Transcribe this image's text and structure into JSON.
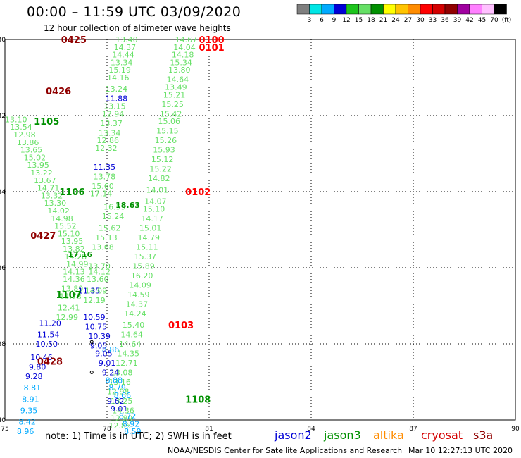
{
  "header": {
    "title": "00:00 – 11:59 UTC 03/09/2020",
    "subtitle": "12 hour collection of altimeter wave heights"
  },
  "colorbar": {
    "labels": [
      "3",
      "6",
      "9",
      "12",
      "15",
      "18",
      "21",
      "24",
      "27",
      "30",
      "33",
      "36",
      "39",
      "42",
      "45",
      "70",
      "(ft)"
    ],
    "colors": [
      "#7f7f7f",
      "#00e6e6",
      "#00aaff",
      "#0000d6",
      "#1cc41c",
      "#66e066",
      "#009000",
      "#ffff00",
      "#ffc400",
      "#ff8c00",
      "#ff0000",
      "#d40000",
      "#900000",
      "#a000a0",
      "#ff80ff",
      "#ffc0ff",
      "#000000"
    ]
  },
  "footer": {
    "note": "note: 1) Time is in UTC; 2) SWH is in feet",
    "credit": "NOAA/NESDIS Center for Satellite Applications and Research",
    "timestamp": "Mar 10 12:27:13 UTC 2020",
    "satellites": [
      {
        "name": "jason2",
        "color": "#0000d6"
      },
      {
        "name": "jason3",
        "color": "#009000"
      },
      {
        "name": "altika",
        "color": "#ff8c00"
      },
      {
        "name": "cryosat",
        "color": "#d40000"
      },
      {
        "name": "s3a",
        "color": "#900000"
      }
    ]
  },
  "chart_data": {
    "type": "scatter",
    "title": "00:00 – 11:59 UTC 03/09/2020",
    "xlim": [
      75,
      90
    ],
    "ylim": [
      -40,
      -30
    ],
    "xticks": [
      75,
      78,
      81,
      84,
      87,
      90
    ],
    "yticks": [
      -30,
      -32,
      -34,
      -36,
      -38,
      -40
    ],
    "xtick_labels": [
      "75",
      "78",
      "81",
      "84",
      "87",
      "90"
    ],
    "ytick_labels": [
      "-30",
      "-32",
      "-34",
      "-36",
      "-38",
      "-40"
    ],
    "grid": true,
    "pass_labels": [
      {
        "text": "0425",
        "lon": 76.65,
        "lat": -30.0,
        "color": "#900000"
      },
      {
        "text": "0100",
        "lon": 80.7,
        "lat": -30.0,
        "color": "#ff0000"
      },
      {
        "text": "0101",
        "lon": 80.7,
        "lat": -30.2,
        "color": "#ff0000"
      },
      {
        "text": "0426",
        "lon": 76.2,
        "lat": -31.35,
        "color": "#900000"
      },
      {
        "text": "1105",
        "lon": 75.85,
        "lat": -32.15,
        "color": "#009000"
      },
      {
        "text": "0102",
        "lon": 80.3,
        "lat": -34.0,
        "color": "#ff0000"
      },
      {
        "text": "1106",
        "lon": 76.6,
        "lat": -34.0,
        "color": "#009000"
      },
      {
        "text": "0427",
        "lon": 75.75,
        "lat": -35.15,
        "color": "#900000"
      },
      {
        "text": "1107",
        "lon": 76.5,
        "lat": -36.7,
        "color": "#009000"
      },
      {
        "text": "0103",
        "lon": 79.8,
        "lat": -37.5,
        "color": "#ff0000"
      },
      {
        "text": "0428",
        "lon": 75.95,
        "lat": -38.45,
        "color": "#900000"
      },
      {
        "text": "1108",
        "lon": 80.3,
        "lat": -39.45,
        "color": "#009000"
      }
    ],
    "series": [
      {
        "name": "jason3",
        "color": "#66e066",
        "points": [
          {
            "lon": 78.25,
            "lat": -30.0,
            "v": "13.40"
          },
          {
            "lon": 78.2,
            "lat": -30.2,
            "v": "14.37"
          },
          {
            "lon": 78.15,
            "lat": -30.4,
            "v": "14.44"
          },
          {
            "lon": 78.1,
            "lat": -30.6,
            "v": "13.34"
          },
          {
            "lon": 78.05,
            "lat": -30.8,
            "v": "15.19"
          },
          {
            "lon": 78.0,
            "lat": -31.0,
            "v": "14.16"
          },
          {
            "lon": 77.95,
            "lat": -31.3,
            "v": "13.24"
          },
          {
            "lon": 77.9,
            "lat": -31.75,
            "v": "13.15"
          },
          {
            "lon": 77.85,
            "lat": -31.95,
            "v": "12.94"
          },
          {
            "lon": 77.8,
            "lat": -32.2,
            "v": "13.37"
          },
          {
            "lon": 77.75,
            "lat": -32.45,
            "v": "13.34"
          },
          {
            "lon": 77.7,
            "lat": -32.65,
            "v": "12.86"
          },
          {
            "lon": 77.65,
            "lat": -32.85,
            "v": "12.32"
          },
          {
            "lon": 77.6,
            "lat": -33.6,
            "v": "13.78"
          },
          {
            "lon": 77.55,
            "lat": -33.85,
            "v": "15.60"
          },
          {
            "lon": 77.5,
            "lat": -34.05,
            "v": "17.14"
          },
          {
            "lon": 75.0,
            "lat": -32.1,
            "v": "13.10"
          },
          {
            "lon": 75.15,
            "lat": -32.3,
            "v": "13.54"
          },
          {
            "lon": 75.25,
            "lat": -32.5,
            "v": "12.98"
          },
          {
            "lon": 75.35,
            "lat": -32.7,
            "v": "13.86"
          },
          {
            "lon": 75.45,
            "lat": -32.9,
            "v": "13.65"
          },
          {
            "lon": 75.55,
            "lat": -33.1,
            "v": "15.02"
          },
          {
            "lon": 75.65,
            "lat": -33.3,
            "v": "13.95"
          },
          {
            "lon": 75.75,
            "lat": -33.5,
            "v": "13.22"
          },
          {
            "lon": 75.85,
            "lat": -33.7,
            "v": "13.67"
          },
          {
            "lon": 75.95,
            "lat": -33.9,
            "v": "14.71"
          },
          {
            "lon": 76.05,
            "lat": -34.1,
            "v": "13.32"
          },
          {
            "lon": 76.15,
            "lat": -34.3,
            "v": "13.30"
          },
          {
            "lon": 76.25,
            "lat": -34.5,
            "v": "14.02"
          },
          {
            "lon": 76.35,
            "lat": -34.7,
            "v": "14.98"
          },
          {
            "lon": 76.45,
            "lat": -34.9,
            "v": "15.52"
          },
          {
            "lon": 76.55,
            "lat": -35.1,
            "v": "15.10"
          },
          {
            "lon": 76.65,
            "lat": -35.3,
            "v": "13.95"
          },
          {
            "lon": 76.7,
            "lat": -35.5,
            "v": "13.82"
          },
          {
            "lon": 76.75,
            "lat": -35.7,
            "v": "14.28"
          },
          {
            "lon": 76.8,
            "lat": -35.9,
            "v": "14.99"
          },
          {
            "lon": 76.7,
            "lat": -36.1,
            "v": "14.13"
          },
          {
            "lon": 76.7,
            "lat": -36.3,
            "v": "14.36"
          },
          {
            "lon": 76.65,
            "lat": -36.55,
            "v": "13.89"
          },
          {
            "lon": 76.6,
            "lat": -36.75,
            "v": "13.73"
          },
          {
            "lon": 76.55,
            "lat": -37.05,
            "v": "12.41"
          },
          {
            "lon": 76.5,
            "lat": -37.3,
            "v": "12.99"
          },
          {
            "lon": 77.9,
            "lat": -34.4,
            "v": "16.59"
          },
          {
            "lon": 77.85,
            "lat": -34.65,
            "v": "15.24"
          },
          {
            "lon": 77.75,
            "lat": -34.95,
            "v": "15.62"
          },
          {
            "lon": 77.65,
            "lat": -35.2,
            "v": "15.13"
          },
          {
            "lon": 77.55,
            "lat": -35.45,
            "v": "13.68"
          },
          {
            "lon": 77.45,
            "lat": -35.95,
            "v": "13.70"
          },
          {
            "lon": 77.45,
            "lat": -36.1,
            "v": "14.12"
          },
          {
            "lon": 77.4,
            "lat": -36.3,
            "v": "13.60"
          },
          {
            "lon": 77.35,
            "lat": -36.6,
            "v": "14.09"
          },
          {
            "lon": 77.3,
            "lat": -36.85,
            "v": "12.19"
          },
          {
            "lon": 80.0,
            "lat": -30.0,
            "v": "14.67"
          },
          {
            "lon": 79.95,
            "lat": -30.2,
            "v": "14.04"
          },
          {
            "lon": 79.9,
            "lat": -30.4,
            "v": "14.18"
          },
          {
            "lon": 79.85,
            "lat": -30.6,
            "v": "15.34"
          },
          {
            "lon": 79.8,
            "lat": -30.8,
            "v": "13.80"
          },
          {
            "lon": 79.75,
            "lat": -31.05,
            "v": "14.64"
          },
          {
            "lon": 79.7,
            "lat": -31.25,
            "v": "13.49"
          },
          {
            "lon": 79.65,
            "lat": -31.45,
            "v": "15.21"
          },
          {
            "lon": 79.6,
            "lat": -31.7,
            "v": "15.25"
          },
          {
            "lon": 79.55,
            "lat": -31.95,
            "v": "15.42"
          },
          {
            "lon": 79.5,
            "lat": -32.15,
            "v": "15.06"
          },
          {
            "lon": 79.45,
            "lat": -32.4,
            "v": "15.15"
          },
          {
            "lon": 79.4,
            "lat": -32.65,
            "v": "15.26"
          },
          {
            "lon": 79.35,
            "lat": -32.9,
            "v": "15.93"
          },
          {
            "lon": 79.3,
            "lat": -33.15,
            "v": "15.12"
          },
          {
            "lon": 79.25,
            "lat": -33.4,
            "v": "15.22"
          },
          {
            "lon": 79.2,
            "lat": -33.65,
            "v": "14.82"
          },
          {
            "lon": 79.15,
            "lat": -33.95,
            "v": "14.01"
          },
          {
            "lon": 79.1,
            "lat": -34.25,
            "v": "14.07"
          },
          {
            "lon": 79.05,
            "lat": -34.45,
            "v": "15.10"
          },
          {
            "lon": 79.0,
            "lat": -34.7,
            "v": "14.17"
          },
          {
            "lon": 78.95,
            "lat": -34.95,
            "v": "15.01"
          },
          {
            "lon": 78.9,
            "lat": -35.2,
            "v": "14.79"
          },
          {
            "lon": 78.85,
            "lat": -35.45,
            "v": "15.11"
          },
          {
            "lon": 78.8,
            "lat": -35.7,
            "v": "15.37"
          },
          {
            "lon": 78.75,
            "lat": -35.95,
            "v": "15.89"
          },
          {
            "lon": 78.7,
            "lat": -36.2,
            "v": "16.20"
          },
          {
            "lon": 78.65,
            "lat": -36.45,
            "v": "14.09"
          },
          {
            "lon": 78.6,
            "lat": -36.7,
            "v": "14.59"
          },
          {
            "lon": 78.55,
            "lat": -36.95,
            "v": "14.37"
          },
          {
            "lon": 78.5,
            "lat": -37.2,
            "v": "14.24"
          },
          {
            "lon": 78.45,
            "lat": -37.5,
            "v": "15.40"
          },
          {
            "lon": 78.4,
            "lat": -37.75,
            "v": "14.64"
          },
          {
            "lon": 78.35,
            "lat": -38.0,
            "v": "14.64"
          },
          {
            "lon": 78.3,
            "lat": -38.25,
            "v": "14.35"
          },
          {
            "lon": 78.25,
            "lat": -38.5,
            "v": "12.71"
          },
          {
            "lon": 78.1,
            "lat": -38.75,
            "v": "13.08"
          },
          {
            "lon": 78.05,
            "lat": -39.0,
            "v": "13.16"
          },
          {
            "lon": 78.0,
            "lat": -39.25,
            "v": "12.98"
          },
          {
            "lon": 78.1,
            "lat": -39.5,
            "v": "13.25"
          },
          {
            "lon": 78.15,
            "lat": -39.75,
            "v": "14.36"
          },
          {
            "lon": 78.1,
            "lat": -39.95,
            "v": "12.89"
          },
          {
            "lon": 78.05,
            "lat": -40.15,
            "v": "12.86"
          }
        ]
      },
      {
        "name": "jason3 bold",
        "color": "#009000",
        "points": [
          {
            "lon": 78.25,
            "lat": -34.35,
            "v": "18.63"
          },
          {
            "lon": 76.85,
            "lat": -35.65,
            "v": "17.16"
          }
        ]
      },
      {
        "name": "jason2",
        "color": "#0000d6",
        "points": [
          {
            "lon": 77.95,
            "lat": -31.55,
            "v": "11.88"
          },
          {
            "lon": 77.6,
            "lat": -33.35,
            "v": "11.35"
          },
          {
            "lon": 77.15,
            "lat": -36.6,
            "v": "11.35"
          },
          {
            "lon": 77.3,
            "lat": -37.3,
            "v": "10.59"
          },
          {
            "lon": 77.35,
            "lat": -37.55,
            "v": "10.75"
          },
          {
            "lon": 77.45,
            "lat": -37.8,
            "v": "10.39"
          },
          {
            "lon": 77.5,
            "lat": -38.05,
            "v": "9.05"
          },
          {
            "lon": 77.65,
            "lat": -38.25,
            "v": "9.05"
          },
          {
            "lon": 77.75,
            "lat": -38.5,
            "v": "9.01"
          },
          {
            "lon": 77.85,
            "lat": -38.75,
            "v": "9.24"
          },
          {
            "lon": 78.0,
            "lat": -39.5,
            "v": "9.62"
          },
          {
            "lon": 78.1,
            "lat": -39.7,
            "v": "9.01"
          },
          {
            "lon": 76.0,
            "lat": -37.45,
            "v": "11.20"
          },
          {
            "lon": 75.95,
            "lat": -37.75,
            "v": "11.54"
          },
          {
            "lon": 75.9,
            "lat": -38.0,
            "v": "10.50"
          },
          {
            "lon": 75.75,
            "lat": -38.35,
            "v": "10.46"
          },
          {
            "lon": 75.7,
            "lat": -38.6,
            "v": "9.80"
          },
          {
            "lon": 75.6,
            "lat": -38.85,
            "v": "9.28"
          }
        ]
      },
      {
        "name": "jason2 light",
        "color": "#00aaff",
        "points": [
          {
            "lon": 77.85,
            "lat": -38.15,
            "v": "8.86"
          },
          {
            "lon": 77.95,
            "lat": -38.95,
            "v": "8.88"
          },
          {
            "lon": 78.05,
            "lat": -39.15,
            "v": "8.79"
          },
          {
            "lon": 78.2,
            "lat": -39.35,
            "v": "8.66"
          },
          {
            "lon": 78.35,
            "lat": -39.9,
            "v": "8.72"
          },
          {
            "lon": 78.45,
            "lat": -40.1,
            "v": "8.92"
          },
          {
            "lon": 78.5,
            "lat": -40.3,
            "v": "8.59"
          },
          {
            "lon": 75.55,
            "lat": -39.15,
            "v": "8.81"
          },
          {
            "lon": 75.5,
            "lat": -39.45,
            "v": "8.91"
          },
          {
            "lon": 75.45,
            "lat": -39.75,
            "v": "9.35"
          },
          {
            "lon": 75.4,
            "lat": -40.05,
            "v": "8.42"
          },
          {
            "lon": 75.35,
            "lat": -40.3,
            "v": "8.96"
          }
        ]
      }
    ],
    "markers": [
      {
        "lon": 77.55,
        "lat": -37.95
      },
      {
        "lon": 77.55,
        "lat": -38.75
      }
    ]
  }
}
